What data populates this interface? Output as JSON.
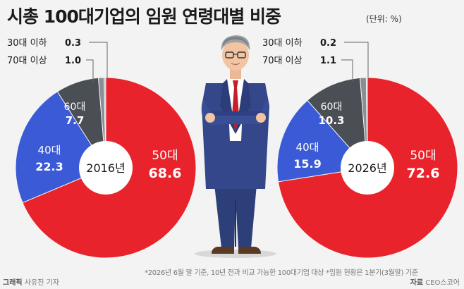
{
  "title": "시총 100대기업의 임원 연령대별 비중",
  "unit": "(단위: %)",
  "footer": {
    "note": "*2026년 6월 말 기준, 10년 전과 비교 가능한 100대기업 대상  *임원 현황은 1분기(3월말) 기준",
    "byline_label": "그래픽",
    "byline_name": "사유진 기자",
    "source_label": "자료",
    "source_name": "CEO스코어"
  },
  "chart_data": [
    {
      "type": "pie",
      "center_label": "2016년",
      "slices": [
        {
          "label": "50대",
          "value": 68.6,
          "color": "#e8232b"
        },
        {
          "label": "40대",
          "value": 22.3,
          "color": "#3b5ad6"
        },
        {
          "label": "60대",
          "value": 7.7,
          "color": "#4a4e55"
        },
        {
          "label": "70대 이상",
          "value": 1.0,
          "color": "#8a8f96"
        },
        {
          "label": "30대 이하",
          "value": 0.3,
          "color": "#b9bdc2"
        }
      ]
    },
    {
      "type": "pie",
      "center_label": "2026년",
      "slices": [
        {
          "label": "50대",
          "value": 72.6,
          "color": "#e8232b"
        },
        {
          "label": "40대",
          "value": 15.9,
          "color": "#3b5ad6"
        },
        {
          "label": "60대",
          "value": 10.3,
          "color": "#4a4e55"
        },
        {
          "label": "70대 이상",
          "value": 1.1,
          "color": "#8a8f96"
        },
        {
          "label": "30대 이하",
          "value": 0.2,
          "color": "#b9bdc2"
        }
      ]
    }
  ]
}
